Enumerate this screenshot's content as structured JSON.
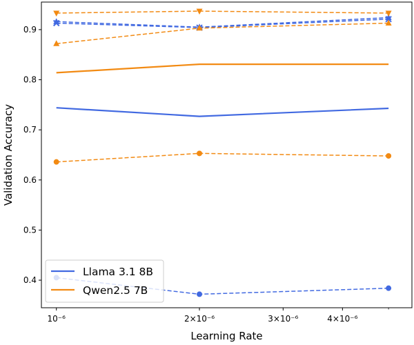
{
  "chart_data": {
    "type": "line",
    "title": "",
    "xlabel": "Learning Rate",
    "ylabel": "Validation Accuracy",
    "x_scale": "log",
    "xlim": [
      9.3e-07,
      5.6e-06
    ],
    "ylim": [
      0.345,
      0.955
    ],
    "x": [
      1e-06,
      2e-06,
      5e-06
    ],
    "x_ticks": [
      {
        "value": 1e-06,
        "label": "10⁻⁶"
      },
      {
        "value": 2e-06,
        "label": "2×10⁻⁶"
      },
      {
        "value": 3e-06,
        "label": "3×10⁻⁶"
      },
      {
        "value": 4e-06,
        "label": "4×10⁻⁶"
      }
    ],
    "y_ticks": [
      0.4,
      0.5,
      0.6,
      0.7,
      0.8,
      0.9
    ],
    "y_tick_labels": [
      "0.4",
      "0.5",
      "0.6",
      "0.7",
      "0.8",
      "0.9"
    ],
    "grid": false,
    "legend": {
      "placement": "lower-left",
      "entries": [
        "Llama 3.1 8B",
        "Qwen2.5 7B"
      ]
    },
    "colors": {
      "llama": "#4169e1",
      "qwen": "#f28a12"
    },
    "series": [
      {
        "name": "Llama 3.1 8B",
        "model": "llama",
        "style": "solid",
        "marker": "none",
        "values": [
          0.744,
          0.727,
          0.743
        ]
      },
      {
        "model": "llama",
        "style": "dashed",
        "marker": "circle",
        "values": [
          0.405,
          0.372,
          0.384
        ]
      },
      {
        "model": "llama",
        "style": "dashed",
        "marker": "triangle-up",
        "values": [
          0.916,
          0.905,
          0.924
        ]
      },
      {
        "model": "llama",
        "style": "dashed",
        "marker": "x",
        "values": [
          0.913,
          0.904,
          0.921
        ]
      },
      {
        "name": "Qwen2.5 7B",
        "model": "qwen",
        "style": "solid",
        "marker": "none",
        "values": [
          0.814,
          0.831,
          0.831
        ]
      },
      {
        "model": "qwen",
        "style": "dashed",
        "marker": "circle",
        "values": [
          0.636,
          0.653,
          0.648
        ]
      },
      {
        "model": "qwen",
        "style": "dashed",
        "marker": "triangle-up",
        "values": [
          0.872,
          0.903,
          0.913
        ]
      },
      {
        "model": "qwen",
        "style": "dashed",
        "marker": "triangle-down",
        "values": [
          0.933,
          0.937,
          0.933
        ]
      }
    ]
  }
}
